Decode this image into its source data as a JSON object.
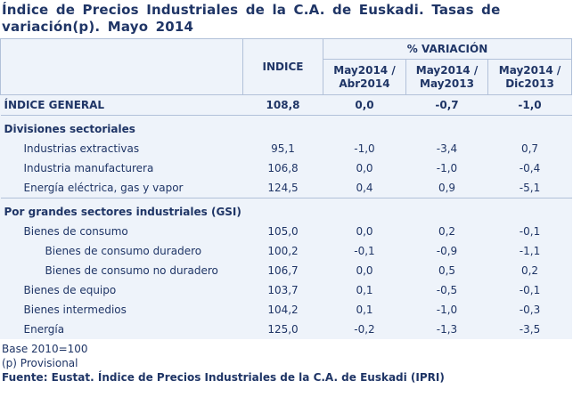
{
  "title": "Índice de Precios Industriales de la C.A. de Euskadi. Tasas de variación(p). Mayo 2014",
  "table": {
    "header": {
      "indice": "INDICE",
      "variacion": "% VARIACIÓN",
      "columns": [
        [
          "May2014 /",
          "Abr2014"
        ],
        [
          "May2014 /",
          "May2013"
        ],
        [
          "May2014 /",
          "Dic2013"
        ]
      ]
    },
    "general": {
      "label": "ÍNDICE GENERAL",
      "values": [
        "108,8",
        "0,0",
        "-0,7",
        "-1,0"
      ]
    },
    "sections": [
      {
        "heading": "Divisiones sectoriales",
        "rows": [
          {
            "label": "Industrias extractivas",
            "values": [
              "95,1",
              "-1,0",
              "-3,4",
              "0,7"
            ]
          },
          {
            "label": "Industria manufacturera",
            "values": [
              "106,8",
              "0,0",
              "-1,0",
              "-0,4"
            ]
          },
          {
            "label": "Energía eléctrica, gas y vapor",
            "values": [
              "124,5",
              "0,4",
              "0,9",
              "-5,1"
            ]
          }
        ]
      },
      {
        "heading": "Por grandes sectores industriales (GSI)",
        "rows": [
          {
            "label": "Bienes de consumo",
            "values": [
              "105,0",
              "0,0",
              "0,2",
              "-0,1"
            ],
            "rows": [
              {
                "label": "Bienes de consumo duradero",
                "values": [
                  "100,2",
                  "-0,1",
                  "-0,9",
                  "-1,1"
                ]
              },
              {
                "label": "Bienes de consumo no duradero",
                "values": [
                  "106,7",
                  "0,0",
                  "0,5",
                  "0,2"
                ]
              }
            ]
          },
          {
            "label": "Bienes de equipo",
            "values": [
              "103,7",
              "0,1",
              "-0,5",
              "-0,1"
            ]
          },
          {
            "label": "Bienes intermedios",
            "values": [
              "104,2",
              "0,1",
              "-1,0",
              "-0,3"
            ]
          },
          {
            "label": "Energía",
            "values": [
              "125,0",
              "-0,2",
              "-1,3",
              "-3,5"
            ]
          }
        ]
      }
    ]
  },
  "notes": [
    "Base 2010=100",
    "(p) Provisional"
  ],
  "source": "Fuente: Eustat. Índice de Precios Industriales de la C.A. de Euskadi (IPRI)"
}
